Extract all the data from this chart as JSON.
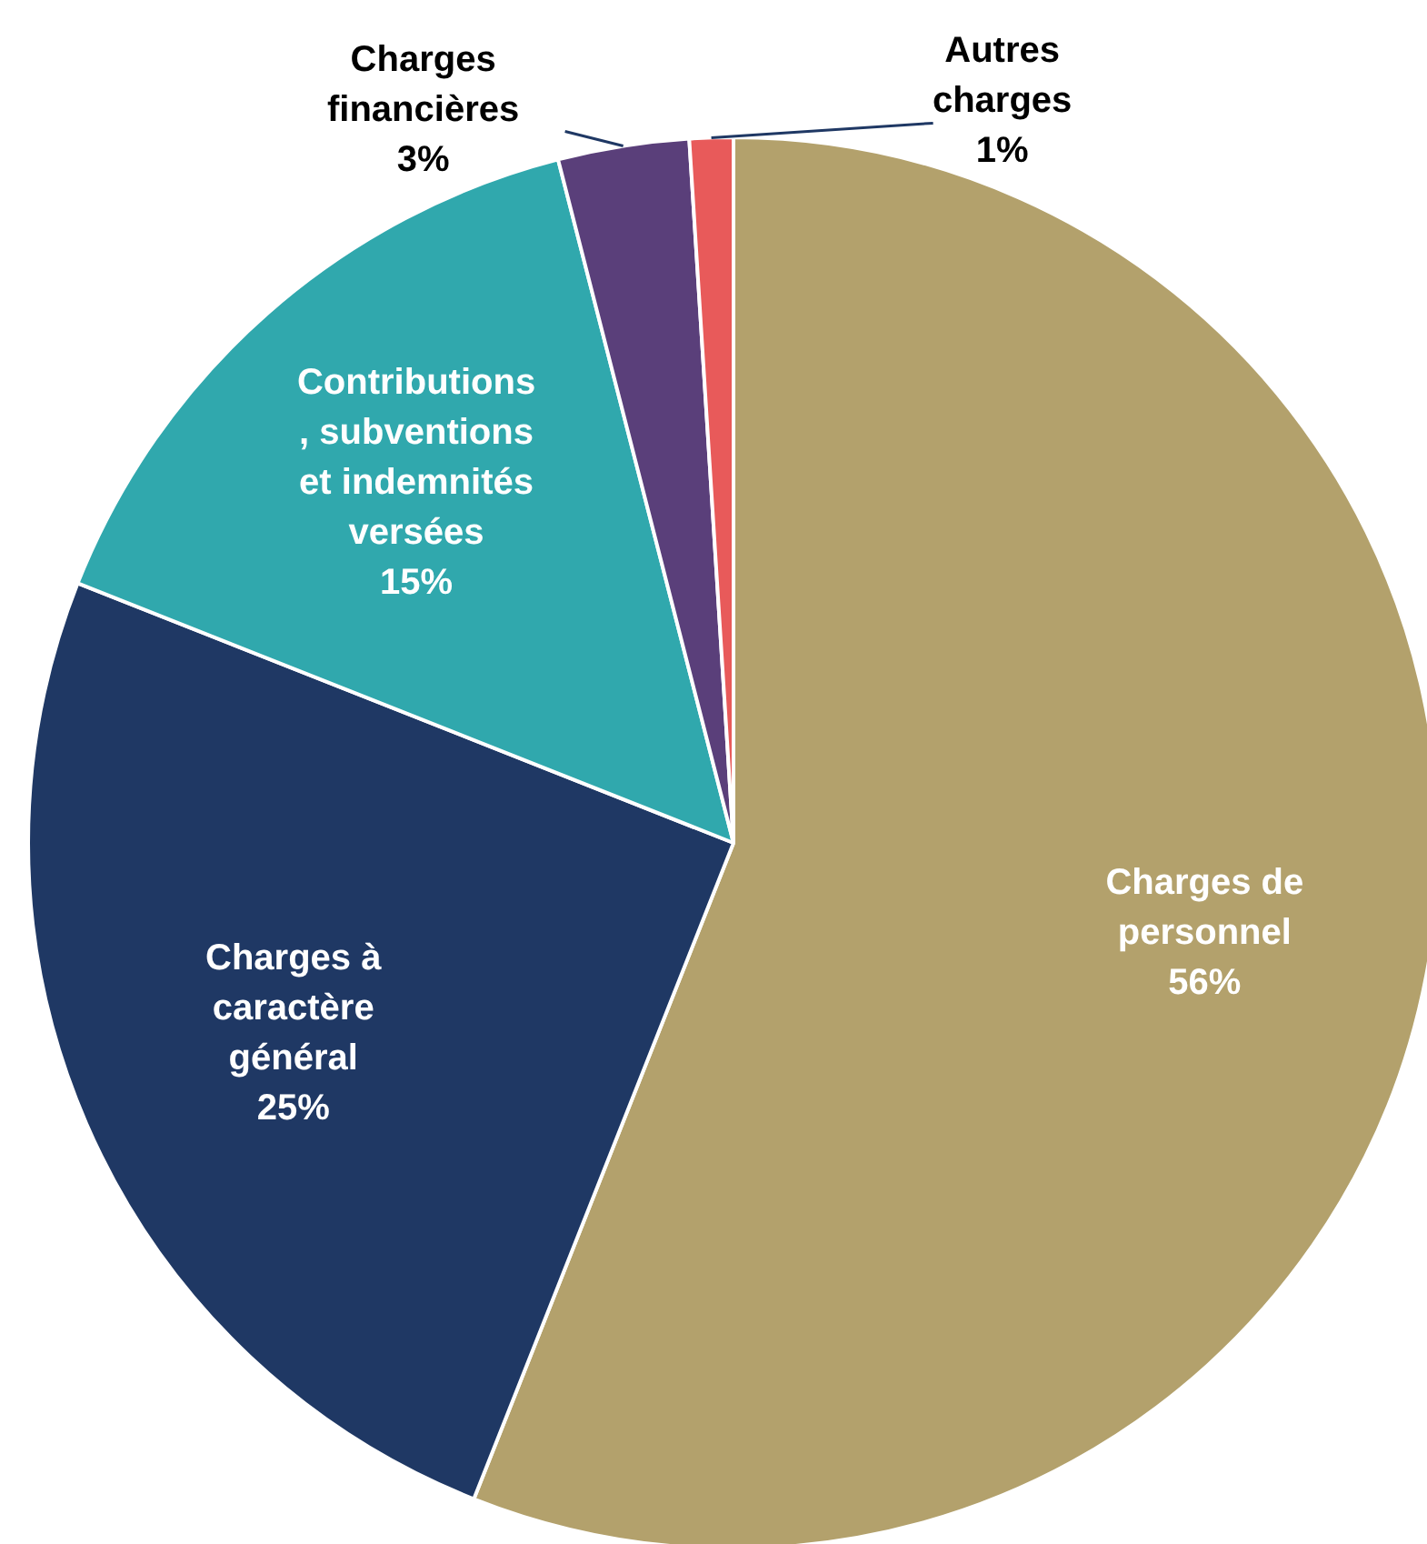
{
  "chart_data": {
    "type": "pie",
    "categories": [
      "Charges de\npersonnel",
      "Charges à\ncaractère\ngénéral",
      "Contributions\n, subventions\net indemnités\nversées",
      "Charges\nfinancières",
      "Autres\ncharges"
    ],
    "values": [
      56,
      25,
      15,
      3,
      1
    ],
    "value_labels": [
      "56%",
      "25%",
      "15%",
      "3%",
      "1%"
    ],
    "colors": [
      "#b3a16c",
      "#1f3864",
      "#30a8ad",
      "#5a3f7a",
      "#e85a5a"
    ],
    "legend": false
  }
}
